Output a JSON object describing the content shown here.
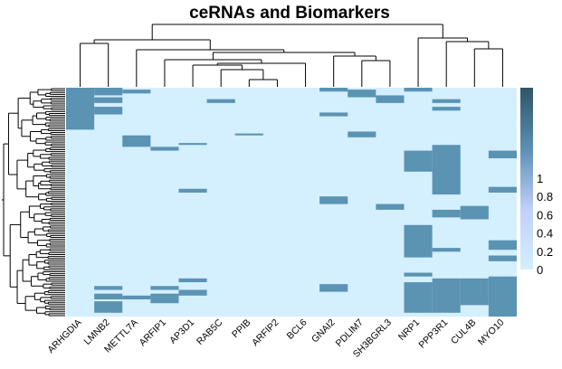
{
  "chart_data": {
    "type": "heatmap",
    "title": "ceRNAs and Biomarkers",
    "xlabel": "",
    "ylabel": "",
    "columns": [
      "ARHGDIA",
      "LMNB2",
      "METTL7A",
      "ARFIP1",
      "AP3D1",
      "RAB5C",
      "PPIB",
      "ARFIP2",
      "BCL6",
      "GNAI2",
      "PDLIM7",
      "SH3BGRL3",
      "NRP1",
      "PPP3R1",
      "CUL4B",
      "MYO10"
    ],
    "rows": 120,
    "row_dendrogram": true,
    "column_dendrogram": true,
    "value_range": [
      0,
      1
    ],
    "colorbar": {
      "ticks": [
        0,
        0.2,
        0.4,
        0.6,
        0.8,
        1
      ],
      "tick_labels": [
        "0",
        "0.2",
        "0.4",
        "0.6",
        "0.8",
        "1"
      ],
      "colors": [
        "#d4efff",
        "#c0cffb",
        "#5a8fb4",
        "#2f5566"
      ]
    },
    "cell_colors": {
      "low": "#d4effd",
      "high": "#5b93b3"
    },
    "high_spans": [
      [
        0,
        [
          [
            0,
            22
          ]
        ]
      ],
      [
        1,
        [
          [
            0,
            4
          ],
          [
            5,
            8
          ],
          [
            10,
            14
          ],
          [
            104,
            106
          ],
          [
            108,
            111
          ],
          [
            112,
            118
          ]
        ]
      ],
      [
        2,
        [
          [
            1,
            3
          ],
          [
            25,
            31
          ],
          [
            109,
            111
          ]
        ]
      ],
      [
        3,
        [
          [
            31,
            33
          ],
          [
            104,
            106
          ],
          [
            108,
            110
          ],
          [
            110,
            113
          ]
        ]
      ],
      [
        4,
        [
          [
            29,
            30
          ],
          [
            53,
            55
          ],
          [
            100,
            102
          ],
          [
            106,
            109
          ]
        ]
      ],
      [
        5,
        [
          [
            6,
            8
          ]
        ]
      ],
      [
        6,
        [
          [
            24,
            25
          ]
        ]
      ],
      [
        9,
        [
          [
            0,
            2
          ],
          [
            13,
            15
          ],
          [
            57,
            61
          ],
          [
            103,
            107
          ]
        ]
      ],
      [
        10,
        [
          [
            1,
            5
          ],
          [
            23,
            26
          ]
        ]
      ],
      [
        11,
        [
          [
            4,
            8
          ],
          [
            61,
            64
          ]
        ]
      ],
      [
        12,
        [
          [
            0,
            2
          ],
          [
            33,
            44
          ],
          [
            72,
            89
          ],
          [
            97,
            99
          ],
          [
            102,
            118
          ]
        ]
      ],
      [
        13,
        [
          [
            6,
            8
          ],
          [
            10,
            12
          ],
          [
            30,
            56
          ],
          [
            64,
            68
          ],
          [
            84,
            86
          ],
          [
            100,
            118
          ]
        ]
      ],
      [
        14,
        [
          [
            62,
            69
          ],
          [
            100,
            114
          ]
        ]
      ],
      [
        15,
        [
          [
            33,
            37
          ],
          [
            52,
            55
          ],
          [
            80,
            85
          ],
          [
            88,
            91
          ],
          [
            99,
            120
          ]
        ]
      ]
    ]
  }
}
